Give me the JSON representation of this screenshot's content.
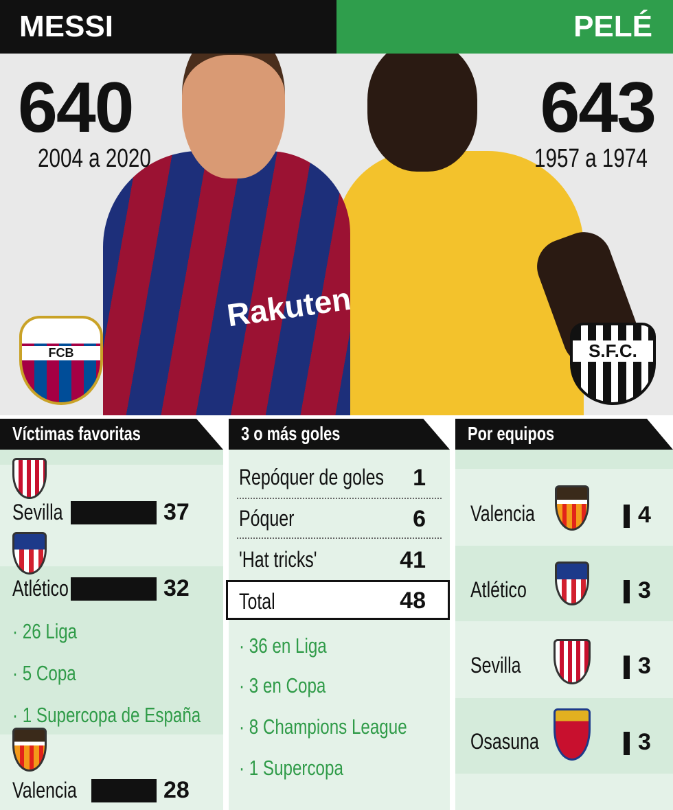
{
  "header": {
    "left_name": "MESSI",
    "right_name": "PELÉ",
    "left_total": "640",
    "right_total": "643",
    "left_years": "2004 a 2020",
    "right_years": "1957 a 1974",
    "left_club_crest": "FCB",
    "right_club_crest": "S.F.C.",
    "sponsor_text": "Rakuten"
  },
  "colors": {
    "black": "#111111",
    "green": "#2f9e4c",
    "text_green": "#2f9b48",
    "panel": "#e4f2e8"
  },
  "victims": {
    "title": "Víctimas favoritas",
    "items": [
      {
        "team": "Sevilla",
        "goals": "37"
      },
      {
        "team": "Atlético",
        "goals": "32"
      },
      {
        "team": "Valencia",
        "goals": "28"
      }
    ],
    "atletico_breakdown": [
      "· 26 Liga",
      "· 5 Copa",
      "· 1 Supercopa de España"
    ]
  },
  "hattricks": {
    "title": "3 o más goles",
    "rows": [
      {
        "label": "Repóquer de goles",
        "value": "1"
      },
      {
        "label": "Póquer",
        "value": "6"
      },
      {
        "label": "'Hat tricks'",
        "value": "41"
      }
    ],
    "total_label": "Total",
    "total_value": "48",
    "breakdown": [
      "· 36 en Liga",
      "· 3 en Copa",
      "· 8 Champions League",
      "· 1  Supercopa"
    ]
  },
  "by_team": {
    "title": "Por equipos",
    "rows": [
      {
        "team": "Valencia",
        "value": "4"
      },
      {
        "team": "Atlético",
        "value": "3"
      },
      {
        "team": "Sevilla",
        "value": "3"
      },
      {
        "team": "Osasuna",
        "value": "3"
      }
    ]
  }
}
